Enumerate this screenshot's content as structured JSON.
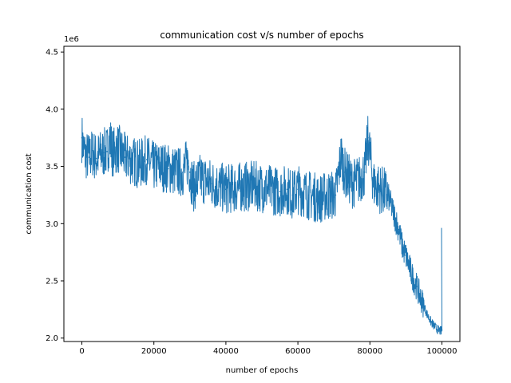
{
  "chart_data": {
    "type": "line",
    "title": "communication cost v/s number of epochs",
    "xlabel": "number of epochs",
    "ylabel": "communication cost",
    "y_offset_label": "1e6",
    "xlim": [
      -5000,
      105000
    ],
    "ylim": [
      1.97,
      4.55
    ],
    "x_ticks": [
      0,
      20000,
      40000,
      60000,
      80000,
      100000
    ],
    "x_tick_labels": [
      "0",
      "20000",
      "40000",
      "60000",
      "80000",
      "100000"
    ],
    "y_ticks": [
      2.0,
      2.5,
      3.0,
      3.5,
      4.0,
      4.5
    ],
    "y_tick_labels": [
      "2.0",
      "2.5",
      "3.0",
      "3.5",
      "4.0",
      "4.5"
    ],
    "grid": false,
    "series": [
      {
        "color": "#1f77b4",
        "x": [
          0,
          500,
          1000,
          2000,
          3000,
          4000,
          5000,
          6000,
          7000,
          7800,
          8500,
          10000,
          12000,
          14000,
          16000,
          18000,
          20000,
          22000,
          24000,
          26000,
          28000,
          29500,
          30000,
          31000,
          33000,
          36000,
          40000,
          44000,
          48000,
          52000,
          55000,
          57000,
          58500,
          60000,
          63000,
          66000,
          69000,
          70500,
          72000,
          73000,
          75000,
          77000,
          78500,
          79500,
          81000,
          83000,
          85000,
          87000,
          88000,
          89000,
          90000,
          91000,
          92000,
          93000,
          94000,
          95000,
          96000,
          97000,
          98000,
          99000,
          99800,
          100000
        ],
        "y": [
          3.75,
          3.65,
          3.6,
          3.58,
          3.62,
          3.57,
          3.6,
          3.62,
          3.63,
          3.75,
          3.62,
          3.66,
          3.58,
          3.55,
          3.52,
          3.56,
          3.5,
          3.5,
          3.48,
          3.46,
          3.45,
          3.55,
          3.45,
          3.32,
          3.4,
          3.35,
          3.3,
          3.32,
          3.33,
          3.3,
          3.28,
          3.3,
          3.25,
          3.3,
          3.25,
          3.22,
          3.25,
          3.25,
          3.6,
          3.45,
          3.35,
          3.38,
          3.45,
          3.75,
          3.35,
          3.3,
          3.25,
          3.05,
          2.95,
          2.8,
          2.72,
          2.62,
          2.52,
          2.45,
          2.36,
          2.28,
          2.2,
          2.14,
          2.1,
          2.07,
          2.06,
          2.07
        ]
      }
    ]
  }
}
